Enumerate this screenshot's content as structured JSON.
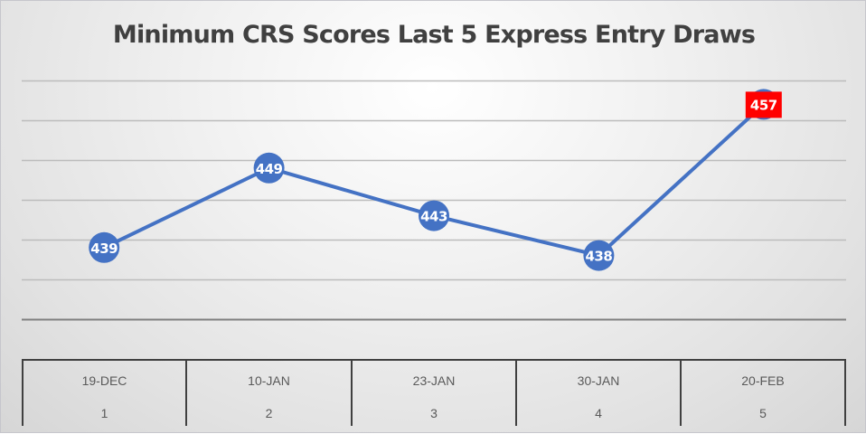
{
  "chart_data": {
    "type": "line",
    "title": "Minimum CRS Scores Last 5 Express Entry Draws",
    "categories": [
      "19-DEC",
      "10-JAN",
      "23-JAN",
      "30-JAN",
      "20-FEB"
    ],
    "category_index": [
      "1",
      "2",
      "3",
      "4",
      "5"
    ],
    "series": [
      {
        "name": "Minimum CRS Score",
        "values": [
          439,
          449,
          443,
          438,
          457
        ],
        "color": "#4472C4"
      }
    ],
    "data_labels": [
      "439",
      "449",
      "443",
      "438",
      "457"
    ],
    "highlight": {
      "index": 4,
      "label_bg": "#FF0000",
      "label_color": "#FFFFFF"
    },
    "xlabel": "",
    "ylabel": "",
    "ylim": [
      430,
      460
    ],
    "y_gridlines": [
      430,
      435,
      440,
      445,
      450,
      455,
      460
    ],
    "y_tick_labels_visible": false,
    "grid": true,
    "legend": "none"
  }
}
